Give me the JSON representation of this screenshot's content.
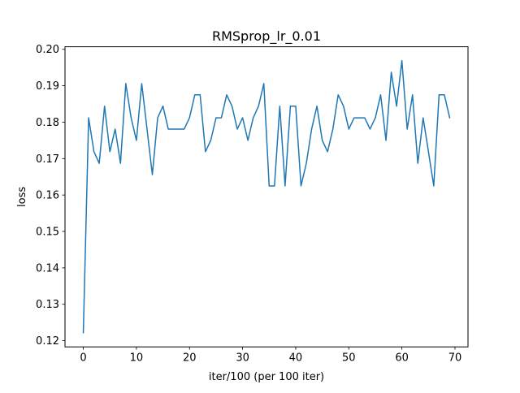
{
  "chart_data": {
    "type": "line",
    "title": "RMSprop_lr_0.01",
    "xlabel": "iter/100 (per 100 iter)",
    "ylabel": "loss",
    "xlim": [
      -3.45,
      72.45
    ],
    "ylim": [
      0.1183,
      0.2007
    ],
    "xticks": [
      0,
      10,
      20,
      30,
      40,
      50,
      60,
      70
    ],
    "yticks": [
      0.12,
      0.13,
      0.14,
      0.15,
      0.16,
      0.17,
      0.18,
      0.19,
      0.2
    ],
    "ytick_labels": [
      "0.12",
      "0.13",
      "0.14",
      "0.15",
      "0.16",
      "0.17",
      "0.18",
      "0.19",
      "0.20"
    ],
    "grid": false,
    "legend": "none",
    "series": [
      {
        "color": "#1f77b4",
        "x": [
          0,
          1,
          2,
          3,
          4,
          5,
          6,
          7,
          8,
          9,
          10,
          11,
          12,
          13,
          14,
          15,
          16,
          17,
          18,
          19,
          20,
          21,
          22,
          23,
          24,
          25,
          26,
          27,
          28,
          29,
          30,
          31,
          32,
          33,
          34,
          35,
          36,
          37,
          38,
          39,
          40,
          41,
          42,
          43,
          44,
          45,
          46,
          47,
          48,
          49,
          50,
          51,
          52,
          53,
          54,
          55,
          56,
          57,
          58,
          59,
          60,
          61,
          62,
          63,
          64,
          65,
          66,
          67,
          68,
          69
        ],
        "values": [
          0.1222,
          0.1812,
          0.1719,
          0.1687,
          0.1844,
          0.1719,
          0.1781,
          0.1687,
          0.1906,
          0.1812,
          0.175,
          0.1906,
          0.1781,
          0.1656,
          0.1812,
          0.1844,
          0.1781,
          0.1781,
          0.1781,
          0.1781,
          0.1812,
          0.1875,
          0.1875,
          0.1719,
          0.175,
          0.1812,
          0.1812,
          0.1875,
          0.1844,
          0.1781,
          0.1812,
          0.175,
          0.1812,
          0.1844,
          0.1906,
          0.1625,
          0.1625,
          0.1844,
          0.1625,
          0.1844,
          0.1844,
          0.1625,
          0.1687,
          0.1781,
          0.1844,
          0.175,
          0.1719,
          0.1781,
          0.1875,
          0.1844,
          0.1781,
          0.1812,
          0.1812,
          0.1812,
          0.1781,
          0.1812,
          0.1875,
          0.175,
          0.1937,
          0.1844,
          0.1969,
          0.1781,
          0.1875,
          0.1687,
          0.1812,
          0.1719,
          0.1625,
          0.1875,
          0.1875,
          0.1812
        ]
      }
    ]
  }
}
